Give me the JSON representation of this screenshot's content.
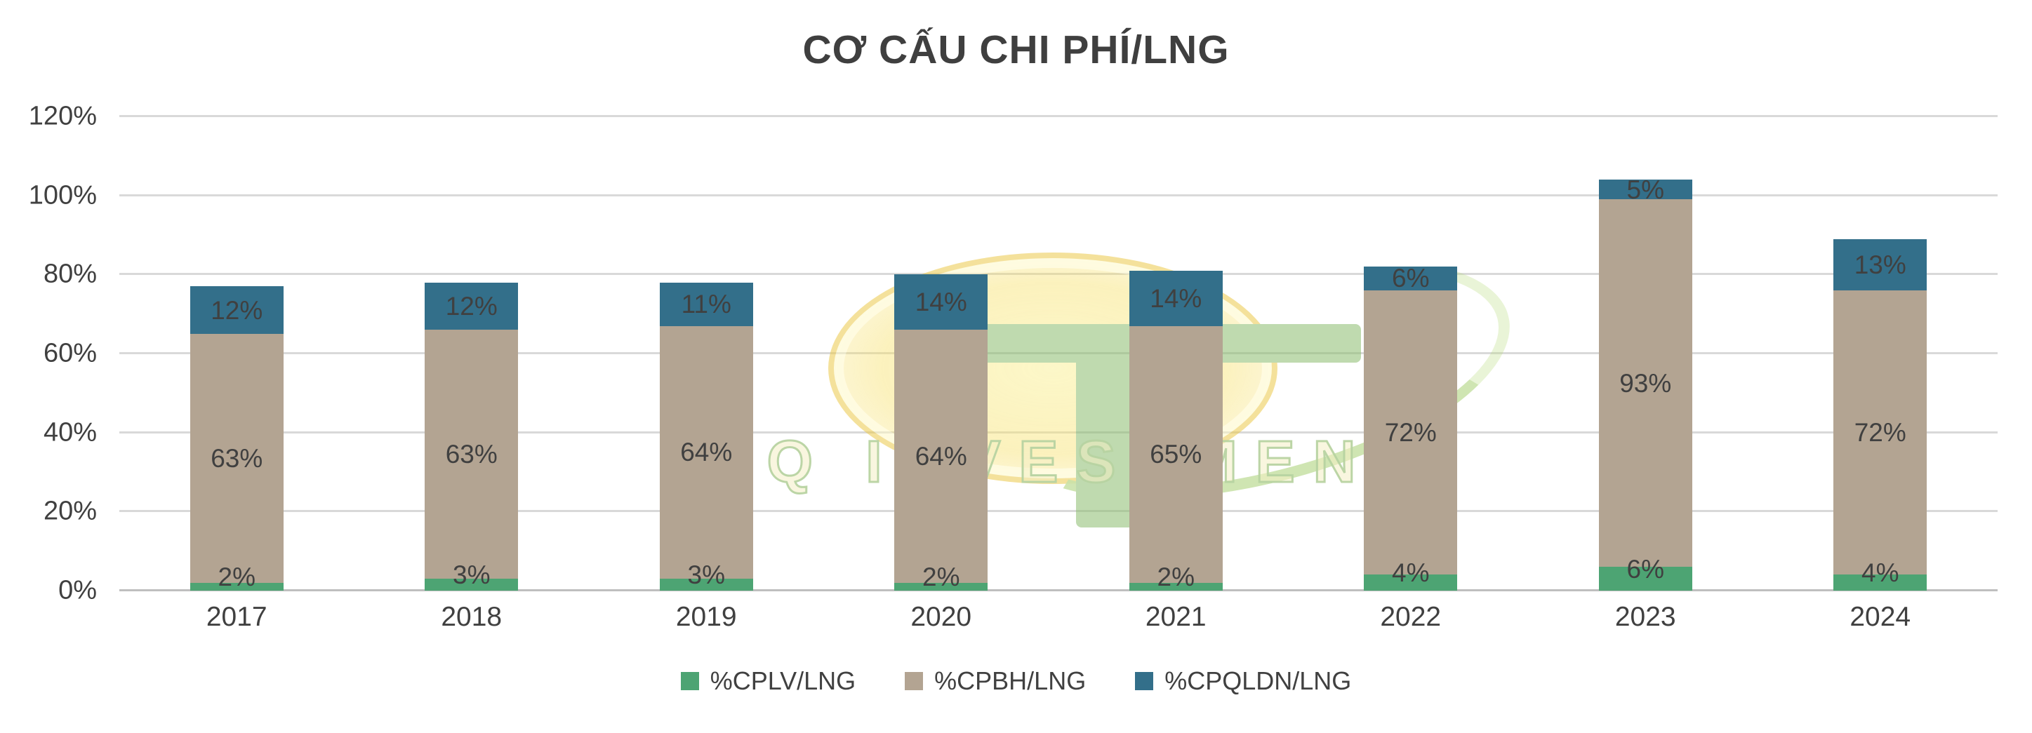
{
  "chart_data": {
    "type": "bar",
    "stacked": true,
    "title": "CƠ CẤU CHI PHÍ/LNG",
    "categories": [
      "2017",
      "2018",
      "2019",
      "2020",
      "2021",
      "2022",
      "2023",
      "2024"
    ],
    "series": [
      {
        "name": "%CPLV/LNG",
        "color": "#4da473",
        "values": [
          2,
          3,
          3,
          2,
          2,
          4,
          6,
          4
        ]
      },
      {
        "name": "%CPBH/LNG",
        "color": "#b3a492",
        "values": [
          63,
          63,
          64,
          64,
          65,
          72,
          93,
          72
        ]
      },
      {
        "name": "%CPQLDN/LNG",
        "color": "#336f8a",
        "values": [
          12,
          12,
          11,
          14,
          14,
          6,
          5,
          13
        ]
      }
    ],
    "y_ticks": [
      "0%",
      "20%",
      "40%",
      "60%",
      "80%",
      "100%",
      "120%"
    ],
    "ylim": [
      0,
      120
    ],
    "grid": true,
    "legend_position": "bottom",
    "data_label_suffix": "%",
    "colors": {
      "text": "#404040",
      "title": "#3f3f3f",
      "gridline": "#d9d9d9"
    }
  },
  "watermark": {
    "text": "TQ INVESTMENT"
  }
}
